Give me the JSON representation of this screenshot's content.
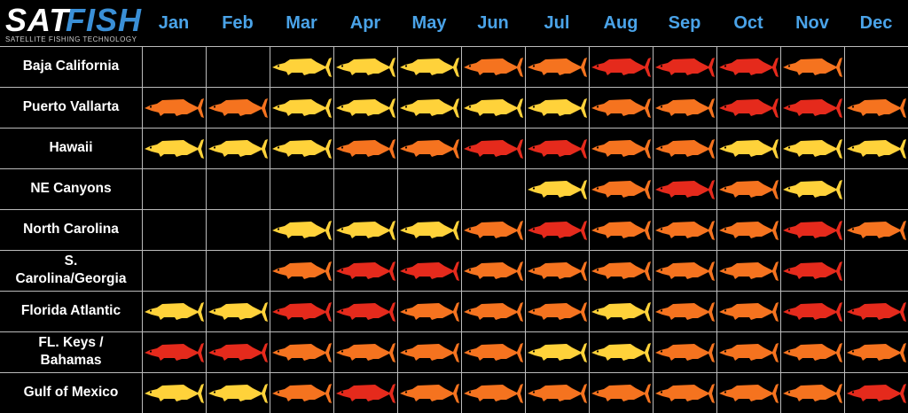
{
  "logo": {
    "sat": "SAT",
    "fish": "FISH",
    "tagline": "SATELLITE FISHING TECHNOLOGY"
  },
  "colors": {
    "low": "#ffd23a",
    "medium": "#f5731f",
    "high": "#e52a1c",
    "month_text": "#4aa3e8",
    "grid": "#bbbbbb"
  },
  "chart_data": {
    "type": "heatmap",
    "icon": "wahoo-fish-icon",
    "levels": {
      "0": "none",
      "1": "yellow",
      "2": "orange",
      "3": "red"
    },
    "months": [
      "Jan",
      "Feb",
      "Mar",
      "Apr",
      "May",
      "Jun",
      "Jul",
      "Aug",
      "Sep",
      "Oct",
      "Nov",
      "Dec"
    ],
    "regions": [
      "Baja California",
      "Puerto Vallarta",
      "Hawaii",
      "NE Canyons",
      "North Carolina",
      "S. Carolina/Georgia",
      "Florida Atlantic",
      "FL. Keys / Bahamas",
      "Gulf of Mexico"
    ],
    "region_lines": [
      [
        "Baja California"
      ],
      [
        "Puerto Vallarta"
      ],
      [
        "Hawaii"
      ],
      [
        "NE Canyons"
      ],
      [
        "North Carolina"
      ],
      [
        "S.",
        "Carolina/Georgia"
      ],
      [
        "Florida Atlantic"
      ],
      [
        "FL. Keys /",
        "Bahamas"
      ],
      [
        "Gulf of Mexico"
      ]
    ],
    "values": [
      [
        0,
        0,
        1,
        1,
        1,
        2,
        2,
        3,
        3,
        3,
        2,
        0
      ],
      [
        2,
        2,
        1,
        1,
        1,
        1,
        1,
        2,
        2,
        3,
        3,
        2
      ],
      [
        1,
        1,
        1,
        2,
        2,
        3,
        3,
        2,
        2,
        1,
        1,
        1
      ],
      [
        0,
        0,
        0,
        0,
        0,
        0,
        1,
        2,
        3,
        2,
        1,
        0
      ],
      [
        0,
        0,
        1,
        1,
        1,
        2,
        3,
        2,
        2,
        2,
        3,
        2
      ],
      [
        0,
        0,
        2,
        3,
        3,
        2,
        2,
        2,
        2,
        2,
        3,
        0
      ],
      [
        1,
        1,
        3,
        3,
        2,
        2,
        2,
        1,
        2,
        2,
        3,
        3
      ],
      [
        3,
        3,
        2,
        2,
        2,
        2,
        1,
        1,
        2,
        2,
        2,
        2
      ],
      [
        1,
        1,
        2,
        3,
        2,
        2,
        2,
        2,
        2,
        2,
        2,
        3
      ]
    ]
  }
}
